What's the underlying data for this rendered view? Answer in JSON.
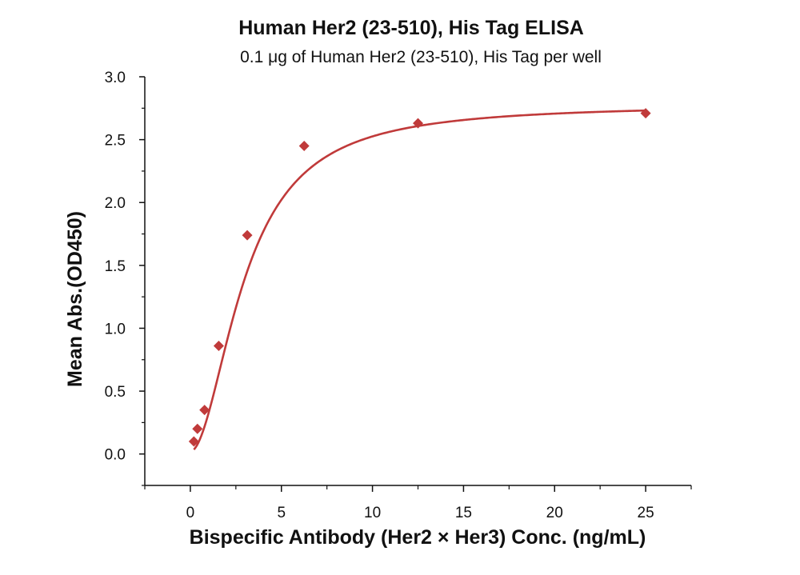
{
  "chart_data": {
    "type": "scatter",
    "title": "Human Her2 (23-510), His Tag ELISA",
    "subtitle": "0.1 μg of Human Her2 (23-510), His Tag per well",
    "xlabel": "Bispecific Antibody (Her2 × Her3) Conc. (ng/mL)",
    "ylabel": "Mean Abs.(OD450)",
    "xlim": [
      -2.5,
      27.5
    ],
    "ylim": [
      -0.25,
      3.0
    ],
    "x_ticks": [
      0,
      5,
      10,
      15,
      20,
      25
    ],
    "y_ticks": [
      0.0,
      0.5,
      1.0,
      1.5,
      2.0,
      2.5,
      3.0
    ],
    "x_tick_labels": [
      "0",
      "5",
      "10",
      "15",
      "20",
      "25"
    ],
    "y_tick_labels": [
      "0.0",
      "0.5",
      "1.0",
      "1.5",
      "2.0",
      "2.5",
      "3.0"
    ],
    "grid": false,
    "series": [
      {
        "color": "#C03A3A",
        "marker": "diamond",
        "x": [
          0.195,
          0.39,
          0.78,
          1.56,
          3.125,
          6.25,
          12.5,
          25
        ],
        "y": [
          0.1,
          0.2,
          0.35,
          0.86,
          1.74,
          2.45,
          2.63,
          2.71
        ]
      }
    ],
    "fit_curve": {
      "color": "#C03A3A",
      "model": "4PL",
      "bottom": 0.02,
      "top": 2.78,
      "ec50": 3.0,
      "hill": 1.9
    }
  }
}
